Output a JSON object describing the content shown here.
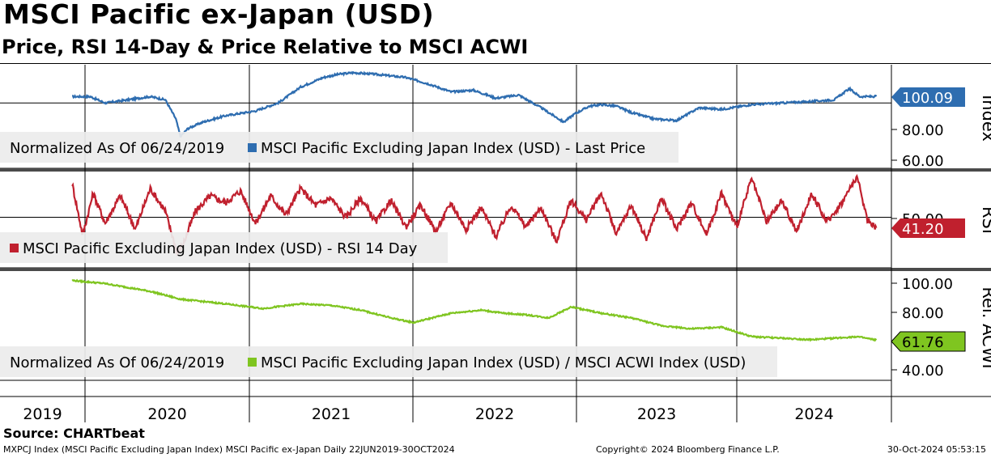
{
  "header": {
    "title": "MSCI Pacific ex-Japan (USD)",
    "subtitle": "Price, RSI 14-Day & Price Relative to MSCI ACWI"
  },
  "source": "Source: CHARTbeat",
  "footer": {
    "left": "MXPCJ Index (MSCI Pacific Excluding Japan Index) MSCI Pacific ex-Japan  Daily 22JUN2019-30OCT2024",
    "middle": "Copyright© 2024 Bloomberg Finance L.P.",
    "right": "30-Oct-2024 05:53:15"
  },
  "colors": {
    "price": "#2e6db0",
    "rsi": "#c0202e",
    "relative": "#7fc520",
    "legend_bg": "#ebebeb"
  },
  "chart_data": [
    {
      "type": "line",
      "panel": "price",
      "axis_title": "Index",
      "legend_note": "Normalized As Of 06/24/2019",
      "legend_series": "MSCI Pacific Excluding Japan Index (USD) - Last Price",
      "ylim": [
        55,
        120
      ],
      "yticks": [
        "80.00",
        "60.00"
      ],
      "last_value": "100.09",
      "x": [
        2019.48,
        2019.6,
        2019.7,
        2019.85,
        2020.0,
        2020.1,
        2020.17,
        2020.2,
        2020.25,
        2020.35,
        2020.5,
        2020.7,
        2020.85,
        2021.0,
        2021.15,
        2021.25,
        2021.35,
        2021.5,
        2021.7,
        2021.85,
        2022.0,
        2022.15,
        2022.3,
        2022.45,
        2022.6,
        2022.75,
        2022.82,
        2022.92,
        2023.0,
        2023.1,
        2023.2,
        2023.35,
        2023.5,
        2023.65,
        2023.8,
        2024.0,
        2024.2,
        2024.4,
        2024.55,
        2024.65,
        2024.72,
        2024.83
      ],
      "values": [
        100,
        100,
        96,
        98,
        100,
        98,
        86,
        75,
        80,
        84,
        88,
        91,
        96,
        106,
        112,
        114,
        115,
        114,
        112,
        108,
        103,
        104,
        99,
        101,
        93,
        84,
        89,
        94,
        95,
        94,
        90,
        86,
        85,
        93,
        92,
        95,
        96,
        97,
        98,
        105,
        100,
        100.09
      ]
    },
    {
      "type": "line",
      "panel": "rsi",
      "axis_title": "RSI",
      "legend_series": "MSCI Pacific Excluding Japan Index (USD) - RSI 14 Day",
      "ylim": [
        8,
        88
      ],
      "yticks": [
        "50.00"
      ],
      "last_value": "41.20",
      "x": [
        2019.48,
        2019.55,
        2019.62,
        2019.7,
        2019.8,
        2019.9,
        2020.0,
        2020.1,
        2020.18,
        2020.22,
        2020.3,
        2020.4,
        2020.5,
        2020.6,
        2020.7,
        2020.8,
        2020.9,
        2021.0,
        2021.1,
        2021.2,
        2021.3,
        2021.4,
        2021.5,
        2021.6,
        2021.7,
        2021.8,
        2021.9,
        2022.0,
        2022.1,
        2022.2,
        2022.3,
        2022.4,
        2022.5,
        2022.6,
        2022.7,
        2022.8,
        2022.9,
        2023.0,
        2023.1,
        2023.2,
        2023.3,
        2023.4,
        2023.5,
        2023.6,
        2023.7,
        2023.8,
        2023.9,
        2024.0,
        2024.1,
        2024.2,
        2024.3,
        2024.4,
        2024.5,
        2024.6,
        2024.7,
        2024.77,
        2024.83
      ],
      "values": [
        78,
        35,
        70,
        45,
        68,
        40,
        74,
        55,
        20,
        28,
        55,
        68,
        62,
        72,
        45,
        68,
        52,
        74,
        60,
        66,
        50,
        66,
        46,
        64,
        42,
        60,
        38,
        62,
        40,
        58,
        34,
        60,
        42,
        58,
        30,
        64,
        48,
        70,
        36,
        60,
        32,
        66,
        40,
        62,
        36,
        70,
        42,
        82,
        46,
        64,
        38,
        70,
        46,
        62,
        84,
        48,
        41.2
      ]
    },
    {
      "type": "line",
      "panel": "relative",
      "axis_title": "Rel. ACWI",
      "legend_note": "Normalized As Of 06/24/2019",
      "legend_series": "MSCI Pacific Excluding Japan Index (USD) / MSCI ACWI Index (USD)",
      "ylim": [
        36,
        106
      ],
      "yticks": [
        "100.00",
        "80.00",
        "40.00"
      ],
      "last_value": "61.76",
      "x": [
        2019.48,
        2019.7,
        2020.0,
        2020.2,
        2020.5,
        2020.75,
        2021.0,
        2021.2,
        2021.4,
        2021.6,
        2021.75,
        2022.0,
        2022.2,
        2022.35,
        2022.5,
        2022.65,
        2022.8,
        2023.0,
        2023.2,
        2023.4,
        2023.6,
        2023.8,
        2024.0,
        2024.2,
        2024.4,
        2024.55,
        2024.7,
        2024.83
      ],
      "values": [
        100,
        98,
        93,
        88,
        85,
        82,
        85,
        84,
        81,
        76,
        73,
        79,
        81,
        79,
        78,
        76,
        83,
        79,
        76,
        71,
        69,
        70,
        64,
        63,
        62,
        63,
        64,
        61.76
      ]
    }
  ],
  "x_axis": {
    "labels": [
      "2019",
      "2020",
      "2021",
      "2022",
      "2023",
      "2024"
    ]
  }
}
